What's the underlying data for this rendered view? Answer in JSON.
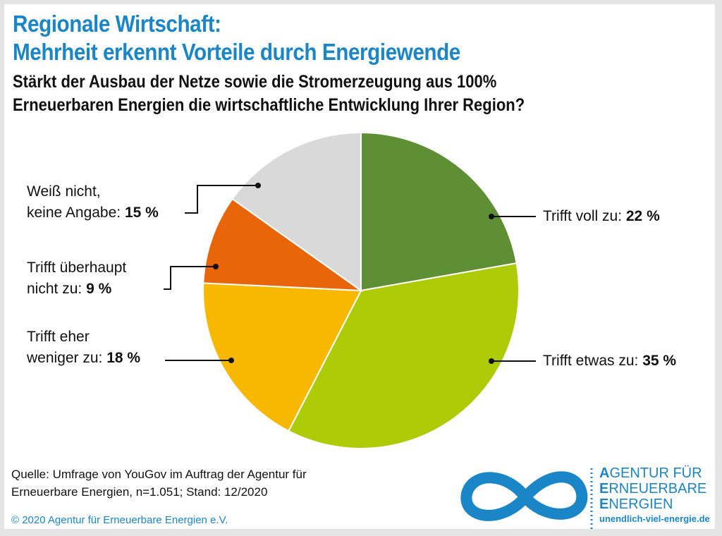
{
  "title_line1": "Regionale Wirtschaft:",
  "title_line2": "Mehrheit erkennt Vorteile durch Energiewende",
  "question_line1": "Stärkt der Ausbau der Netze sowie die Stromerzeugung aus 100%",
  "question_line2": "Erneuerbaren Energien die wirtschaftliche Entwicklung Ihrer Region?",
  "chart_data": {
    "type": "pie",
    "start": "top, clockwise",
    "slices": [
      {
        "label": "Trifft voll zu:",
        "value": 22,
        "value_label": "22 %",
        "color": "#5e8f35"
      },
      {
        "label": "Trifft etwas zu:",
        "value": 35,
        "value_label": "35 %",
        "color": "#aecb07"
      },
      {
        "label_line1": "Trifft eher",
        "label_line2": "weniger zu:",
        "value": 18,
        "value_label": "18 %",
        "color": "#f9b800"
      },
      {
        "label_line1": "Trifft überhaupt",
        "label_line2": "nicht zu:",
        "value": 9,
        "value_label": "9 %",
        "color": "#e8650a"
      },
      {
        "label_line1": "Weiß nicht,",
        "label_line2": "keine Angabe:",
        "value": 15,
        "value_label": "15 %",
        "color": "#d9d9d9"
      }
    ]
  },
  "source_line1": "Quelle: Umfrage von YouGov im Auftrag der Agentur für",
  "source_line2": "Erneuerbare Energien, n=1.051; Stand: 12/2020",
  "copyright": "© 2020 Agentur für Erneuerbare Energien e.V.",
  "logo": {
    "line1_initial": "A",
    "line1_rest": "GENTUR FÜR",
    "line2_initial": "E",
    "line2_rest": "RNEUERBARE",
    "line3_initial": "E",
    "line3_rest": "NERGIEN",
    "url": "unendlich-viel-energie.de",
    "color": "#1a86c8"
  }
}
